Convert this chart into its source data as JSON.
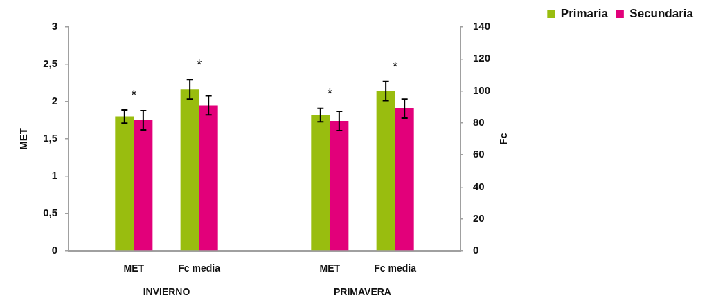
{
  "chart_data": {
    "type": "bar",
    "categories": [
      "MET",
      "Fc media",
      "MET",
      "Fc media"
    ],
    "series": [
      {
        "name": "Primaria",
        "color": "#99bd0f",
        "values": [
          1.8,
          null,
          1.82,
          null
        ],
        "errors": [
          0.09,
          null,
          0.09,
          null
        ]
      },
      {
        "name": "Secundaria",
        "color": "#e2007a",
        "values": [
          1.75,
          null,
          1.74,
          null
        ],
        "errors": [
          0.13,
          null,
          0.13,
          null
        ]
      },
      {
        "color": "#99bd0f",
        "axis": "y2",
        "values": [
          null,
          101,
          null,
          100
        ],
        "errors": [
          null,
          6,
          null,
          6
        ]
      },
      {
        "color": "#e2007a",
        "axis": "y2",
        "values": [
          null,
          91,
          null,
          89
        ],
        "errors": [
          null,
          6,
          null,
          6
        ]
      }
    ],
    "ylabel": "MET",
    "y2label": "Fc",
    "ylim": [
      0,
      3
    ],
    "yticks": [
      0,
      {
        "value": 0.5,
        "label": "0,5"
      },
      1,
      {
        "value": 1.5,
        "label": "1,5"
      },
      2,
      {
        "value": 2.5,
        "label": "2,5"
      },
      3
    ],
    "y2lim": [
      0,
      140
    ],
    "y2ticks": [
      0,
      20,
      40,
      60,
      80,
      100,
      120,
      140
    ],
    "legend": "top right",
    "annotations": [
      "*",
      "*",
      "*",
      "*",
      "INVIERNO",
      "PRIMAVERA"
    ]
  }
}
